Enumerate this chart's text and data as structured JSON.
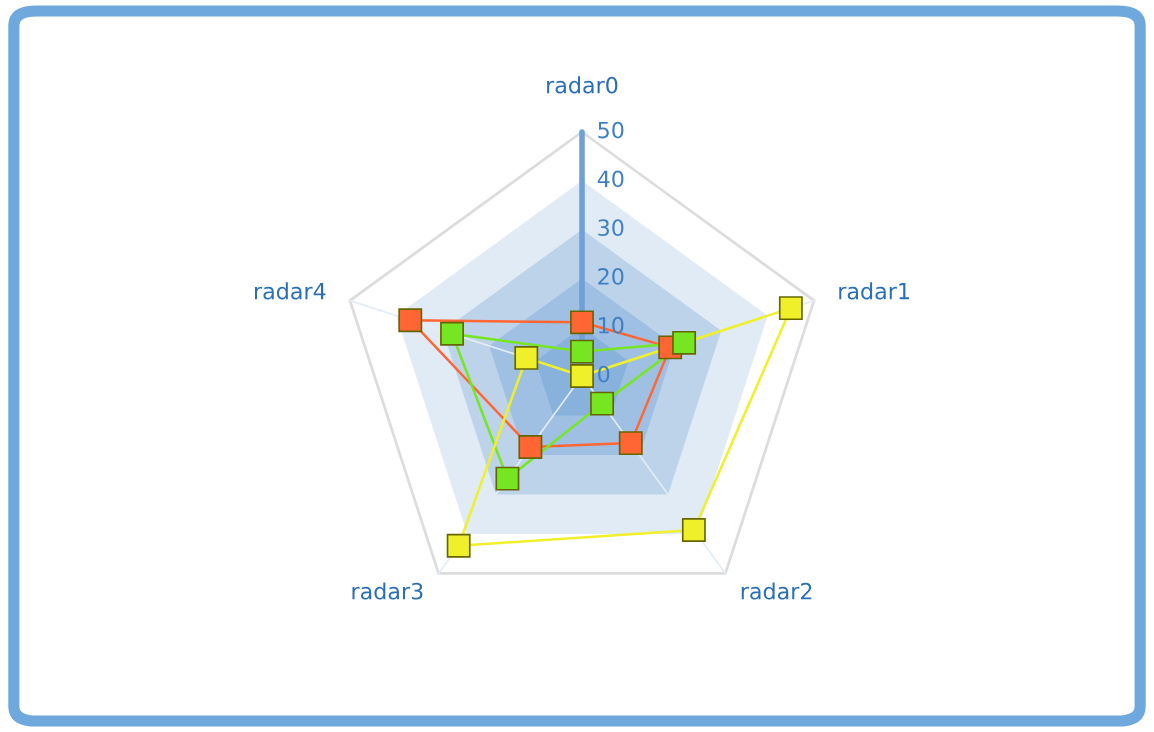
{
  "chart_data": {
    "type": "radar",
    "categories": [
      "radar0",
      "radar1",
      "radar2",
      "radar3",
      "radar4"
    ],
    "ylim": [
      0,
      50
    ],
    "yticks": [
      0,
      10,
      20,
      30,
      40,
      50
    ],
    "grid": true,
    "marker": "square",
    "line_style": "solid",
    "legend": false,
    "series": [
      {
        "color": "#ff6633",
        "values": [
          11,
          19,
          17,
          18,
          37
        ]
      },
      {
        "color": "#77e622",
        "values": [
          5,
          22,
          7,
          26,
          28
        ]
      },
      {
        "color": "#f0f02a",
        "values": [
          0,
          45,
          39,
          43,
          12
        ]
      }
    ]
  }
}
